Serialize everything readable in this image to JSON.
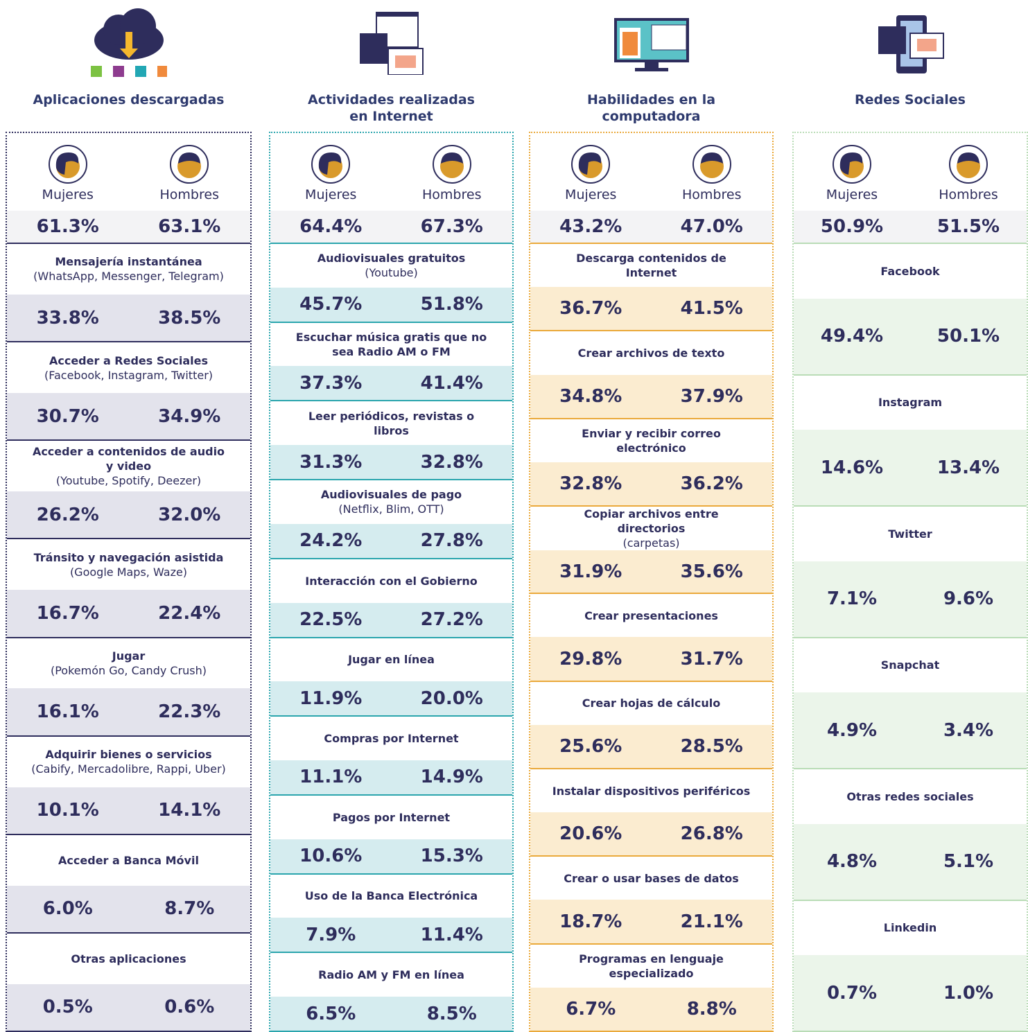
{
  "genders": [
    "Mujeres",
    "Hombres"
  ],
  "columns": [
    {
      "title": "Aplicaciones descargadas",
      "summary": [
        "61.3%",
        "63.1%"
      ],
      "items": [
        {
          "label": "Mensajería instantánea",
          "sublabel": "(WhatsApp, Messenger, Telegram)",
          "values": [
            "33.8%",
            "38.5%"
          ]
        },
        {
          "label": "Acceder a Redes Sociales",
          "sublabel": "(Facebook, Instagram, Twitter)",
          "values": [
            "30.7%",
            "34.9%"
          ]
        },
        {
          "label": "Acceder a contenidos de audio y video",
          "sublabel": "(Youtube, Spotify, Deezer)",
          "values": [
            "26.2%",
            "32.0%"
          ]
        },
        {
          "label": "Tránsito y navegación asistida",
          "sublabel": "(Google Maps, Waze)",
          "values": [
            "16.7%",
            "22.4%"
          ]
        },
        {
          "label": "Jugar",
          "sublabel": "(Pokemón Go, Candy Crush)",
          "values": [
            "16.1%",
            "22.3%"
          ]
        },
        {
          "label": "Adquirir bienes o servicios",
          "sublabel": "(Cabify, Mercadolibre, Rappi, Uber)",
          "values": [
            "10.1%",
            "14.1%"
          ]
        },
        {
          "label": "Acceder a Banca Móvil",
          "values": [
            "6.0%",
            "8.7%"
          ]
        },
        {
          "label": "Otras aplicaciones",
          "values": [
            "0.5%",
            "0.6%"
          ]
        }
      ]
    },
    {
      "title": "Actividades realizadas en Internet",
      "summary": [
        "64.4%",
        "67.3%"
      ],
      "items": [
        {
          "label": "Audiovisuales gratuitos",
          "sublabel": "(Youtube)",
          "values": [
            "45.7%",
            "51.8%"
          ]
        },
        {
          "label": "Escuchar música gratis que no sea Radio AM o FM",
          "values": [
            "37.3%",
            "41.4%"
          ]
        },
        {
          "label": "Leer periódicos, revistas o libros",
          "values": [
            "31.3%",
            "32.8%"
          ]
        },
        {
          "label": "Audiovisuales de pago",
          "sublabel": "(Netflix, Blim, OTT)",
          "values": [
            "24.2%",
            "27.8%"
          ]
        },
        {
          "label": "Interacción con el Gobierno",
          "values": [
            "22.5%",
            "27.2%"
          ]
        },
        {
          "label": "Jugar en línea",
          "values": [
            "11.9%",
            "20.0%"
          ]
        },
        {
          "label": "Compras por Internet",
          "values": [
            "11.1%",
            "14.9%"
          ]
        },
        {
          "label": "Pagos por Internet",
          "values": [
            "10.6%",
            "15.3%"
          ]
        },
        {
          "label": "Uso de la Banca Electrónica",
          "values": [
            "7.9%",
            "11.4%"
          ]
        },
        {
          "label": "Radio AM y FM en línea",
          "values": [
            "6.5%",
            "8.5%"
          ]
        }
      ]
    },
    {
      "title": "Habilidades en la computadora",
      "summary": [
        "43.2%",
        "47.0%"
      ],
      "items": [
        {
          "label": "Descarga contenidos de Internet",
          "values": [
            "36.7%",
            "41.5%"
          ]
        },
        {
          "label": "Crear archivos de texto",
          "values": [
            "34.8%",
            "37.9%"
          ]
        },
        {
          "label": "Enviar y recibir correo electrónico",
          "values": [
            "32.8%",
            "36.2%"
          ]
        },
        {
          "label": "Copiar archivos entre directorios",
          "sublabel": "(carpetas)",
          "values": [
            "31.9%",
            "35.6%"
          ]
        },
        {
          "label": "Crear presentaciones",
          "values": [
            "29.8%",
            "31.7%"
          ]
        },
        {
          "label": "Crear hojas de cálculo",
          "values": [
            "25.6%",
            "28.5%"
          ]
        },
        {
          "label": "Instalar dispositivos periféricos",
          "values": [
            "20.6%",
            "26.8%"
          ]
        },
        {
          "label": "Crear o usar bases de datos",
          "values": [
            "18.7%",
            "21.1%"
          ]
        },
        {
          "label": "Programas en lenguaje especializado",
          "values": [
            "6.7%",
            "8.8%"
          ]
        }
      ]
    },
    {
      "title": "Redes Sociales",
      "summary": [
        "50.9%",
        "51.5%"
      ],
      "items": [
        {
          "label": "Facebook",
          "values": [
            "49.4%",
            "50.1%"
          ]
        },
        {
          "label": "Instagram",
          "values": [
            "14.6%",
            "13.4%"
          ]
        },
        {
          "label": "Twitter",
          "values": [
            "7.1%",
            "9.6%"
          ]
        },
        {
          "label": "Snapchat",
          "values": [
            "4.9%",
            "3.4%"
          ]
        },
        {
          "label": "Otras redes sociales",
          "values": [
            "4.8%",
            "5.1%"
          ]
        },
        {
          "label": "Linkedin",
          "values": [
            "0.7%",
            "1.0%"
          ]
        }
      ]
    }
  ]
}
